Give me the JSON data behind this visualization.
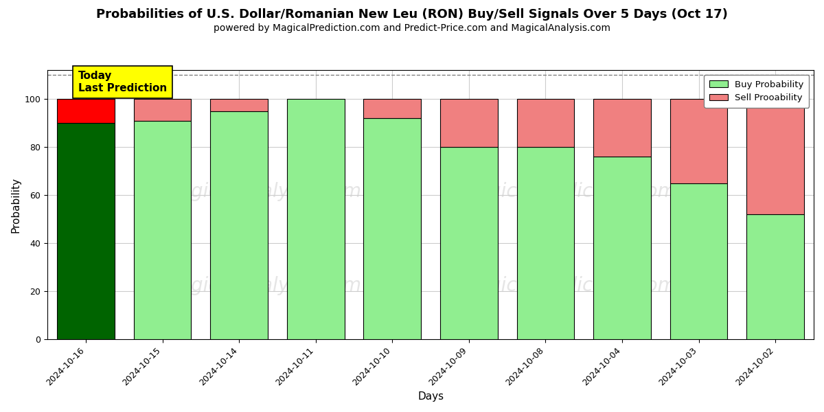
{
  "title": "Probabilities of U.S. Dollar/Romanian New Leu (RON) Buy/Sell Signals Over 5 Days (Oct 17)",
  "subtitle": "powered by MagicalPrediction.com and Predict-Price.com and MagicalAnalysis.com",
  "xlabel": "Days",
  "ylabel": "Probability",
  "dates": [
    "2024-10-16",
    "2024-10-15",
    "2024-10-14",
    "2024-10-11",
    "2024-10-10",
    "2024-10-09",
    "2024-10-08",
    "2024-10-04",
    "2024-10-03",
    "2024-10-02"
  ],
  "buy_values": [
    90,
    91,
    95,
    100,
    92,
    80,
    80,
    76,
    65,
    52
  ],
  "sell_values": [
    10,
    9,
    5,
    0,
    8,
    20,
    20,
    24,
    35,
    48
  ],
  "buy_color_today": "#006400",
  "sell_color_today": "#ff0000",
  "buy_color_normal": "#90EE90",
  "sell_color_normal": "#f08080",
  "bar_edge_color": "black",
  "bar_edge_width": 0.8,
  "ylim": [
    0,
    112
  ],
  "yticks": [
    0,
    20,
    40,
    60,
    80,
    100
  ],
  "dashed_line_y": 110,
  "legend_buy_label": "Buy Probability",
  "legend_sell_label": "Sell Prooability",
  "annotation_text": "Today\nLast Prediction",
  "annotation_bg_color": "#ffff00",
  "watermark_color": "#cccccc",
  "grid_color": "#cccccc",
  "background_color": "#ffffff",
  "title_fontsize": 13,
  "subtitle_fontsize": 10,
  "label_fontsize": 11,
  "tick_fontsize": 9,
  "annotation_fontsize": 11
}
